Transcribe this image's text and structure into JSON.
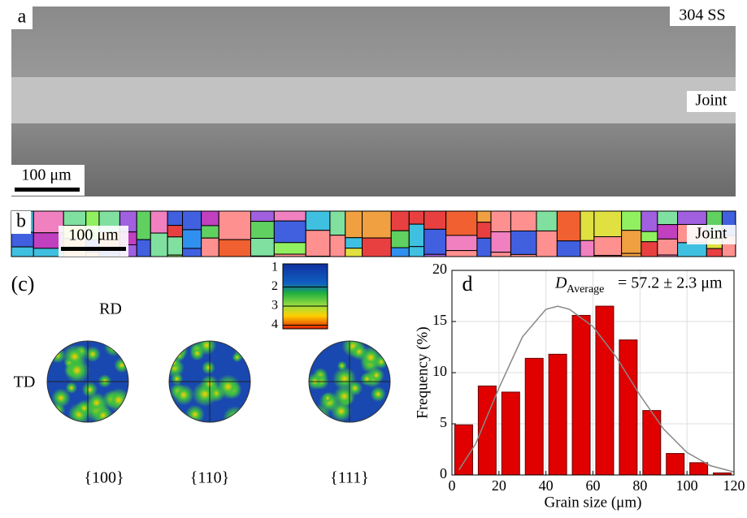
{
  "panel_a": {
    "label": "a",
    "material": "304 SS",
    "zone": "Joint",
    "scale": "100 μm"
  },
  "panel_b": {
    "label": "b",
    "scale": "100 μm",
    "zone": "Joint"
  },
  "panel_c": {
    "label": "(c)",
    "rd": "RD",
    "td": "TD",
    "legend": [
      "1",
      "2",
      "3",
      "4"
    ],
    "planes": [
      "{100}",
      "{110}",
      "{111}"
    ]
  },
  "chart_data": {
    "type": "histogram",
    "panel_label": "d",
    "annotation": {
      "symbol": "D",
      "subscript": "Average",
      "text": "= 57.2 ± 2.3 μm"
    },
    "x_label": "Grain size (μm)",
    "y_label": "Frequency (%)",
    "bins": [
      0,
      10,
      20,
      30,
      40,
      50,
      60,
      70,
      80,
      90,
      100,
      110,
      120
    ],
    "values": [
      4.9,
      8.7,
      8.1,
      11.4,
      11.8,
      15.6,
      16.5,
      13.2,
      6.3,
      2.1,
      1.2,
      0.2
    ],
    "color": "#e00000",
    "fit": {
      "x": [
        3,
        10,
        20,
        30,
        40,
        45,
        50,
        60,
        70,
        80,
        90,
        100,
        110,
        120
      ],
      "values": [
        0.5,
        3,
        8.5,
        13.5,
        16.2,
        16.5,
        16.2,
        14.5,
        11.5,
        7.8,
        4.5,
        2.2,
        0.9,
        0.3
      ],
      "color": "#888888"
    },
    "xlim": [
      0,
      120
    ],
    "xticks": [
      0,
      20,
      40,
      60,
      80,
      100,
      120
    ],
    "ylim": [
      0,
      20
    ],
    "yticks": [
      0,
      5,
      10,
      15,
      20
    ],
    "grid": true
  }
}
